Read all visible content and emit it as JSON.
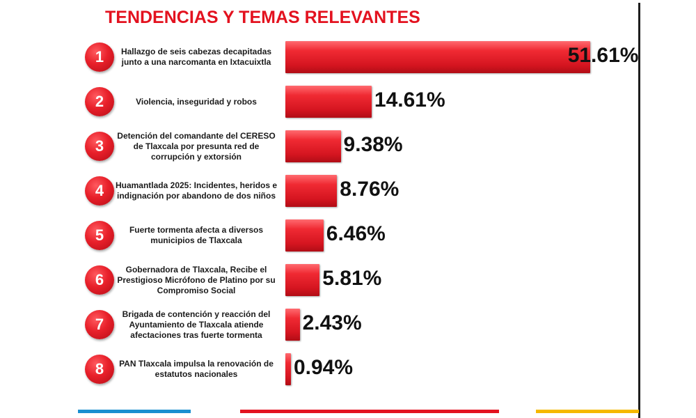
{
  "header": {
    "title": "TENDENCIAS Y TEMAS RELEVANTES"
  },
  "colors": {
    "accent": "#e3121f",
    "bar": "#e8202a",
    "footer_blue": "#1a8fd0",
    "footer_red": "#e3121f",
    "footer_yellow": "#f5b800"
  },
  "chart_data": {
    "type": "bar",
    "orientation": "horizontal",
    "title": "TENDENCIAS Y TEMAS RELEVANTES",
    "xlim": [
      0,
      52
    ],
    "grid": false,
    "legend": "none",
    "ranks": [
      "1",
      "2",
      "3",
      "4",
      "5",
      "6",
      "7",
      "8"
    ],
    "categories": [
      "Hallazgo de seis cabezas decapitadas junto a una narcomanta en Ixtacuixtla",
      "Violencia, inseguridad y robos",
      "Detención del comandante del CERESO de Tlaxcala por presunta red de corrupción y extorsión",
      "Huamantlada 2025: Incidentes, heridos e indignación por abandono de dos niños",
      "Fuerte tormenta afecta a diversos municipios de Tlaxcala",
      "Gobernadora de Tlaxcala, Recibe el Prestigioso Micrófono de Platino por su Compromiso Social",
      "Brigada de contención y reacción del Ayuntamiento de Tlaxcala atiende afectaciones tras fuerte tormenta",
      "PAN Tlaxcala impulsa la renovación de estatutos nacionales"
    ],
    "values": [
      51.61,
      14.61,
      9.38,
      8.76,
      6.46,
      5.81,
      2.43,
      0.94
    ],
    "value_labels": [
      "51.61%",
      "14.61%",
      "9.38%",
      "8.76%",
      "6.46%",
      "5.81%",
      "2.43%",
      "0.94%"
    ]
  }
}
